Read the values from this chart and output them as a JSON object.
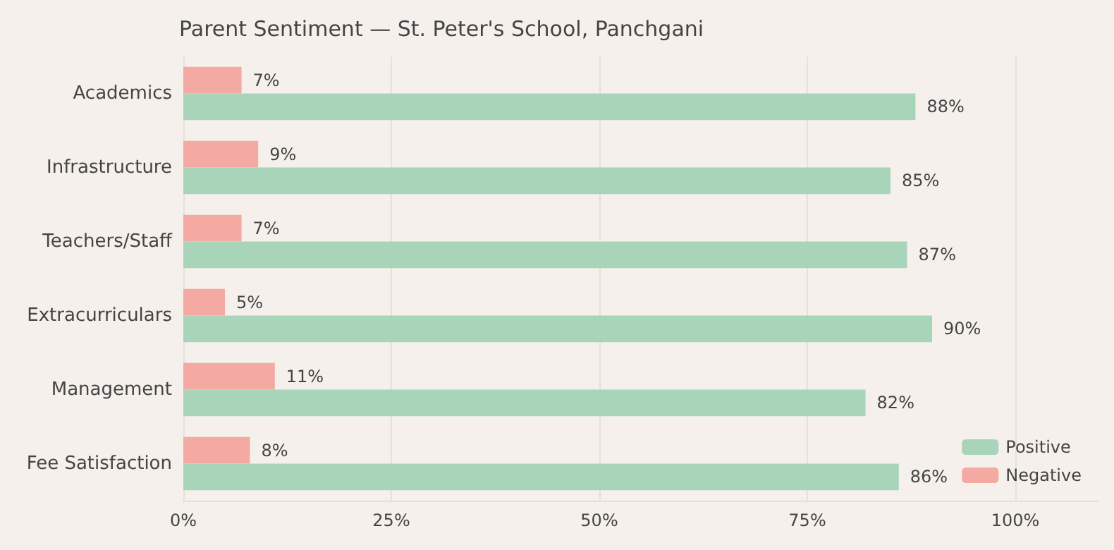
{
  "chart_data": {
    "type": "bar",
    "orientation": "horizontal",
    "title": "Parent Sentiment — St. Peter's School, Panchgani",
    "categories": [
      "Academics",
      "Infrastructure",
      "Teachers/Staff",
      "Extracurriculars",
      "Management",
      "Fee Satisfaction"
    ],
    "series": [
      {
        "name": "Positive",
        "color": "#a8d5ba",
        "values": [
          88,
          85,
          87,
          90,
          82,
          86
        ],
        "value_labels": [
          "88%",
          "85%",
          "87%",
          "90%",
          "82%",
          "86%"
        ]
      },
      {
        "name": "Negative",
        "color": "#f4a9a3",
        "values": [
          7,
          9,
          7,
          5,
          11,
          8
        ],
        "value_labels": [
          "7%",
          "9%",
          "7%",
          "5%",
          "11%",
          "8%"
        ]
      }
    ],
    "xlim": [
      0,
      110
    ],
    "xticks": [
      {
        "value": 0,
        "label": "0%"
      },
      {
        "value": 25,
        "label": "25%"
      },
      {
        "value": 50,
        "label": "50%"
      },
      {
        "value": 75,
        "label": "75%"
      },
      {
        "value": 100,
        "label": "100%"
      }
    ],
    "grid": "x",
    "legend": "bottom right"
  }
}
